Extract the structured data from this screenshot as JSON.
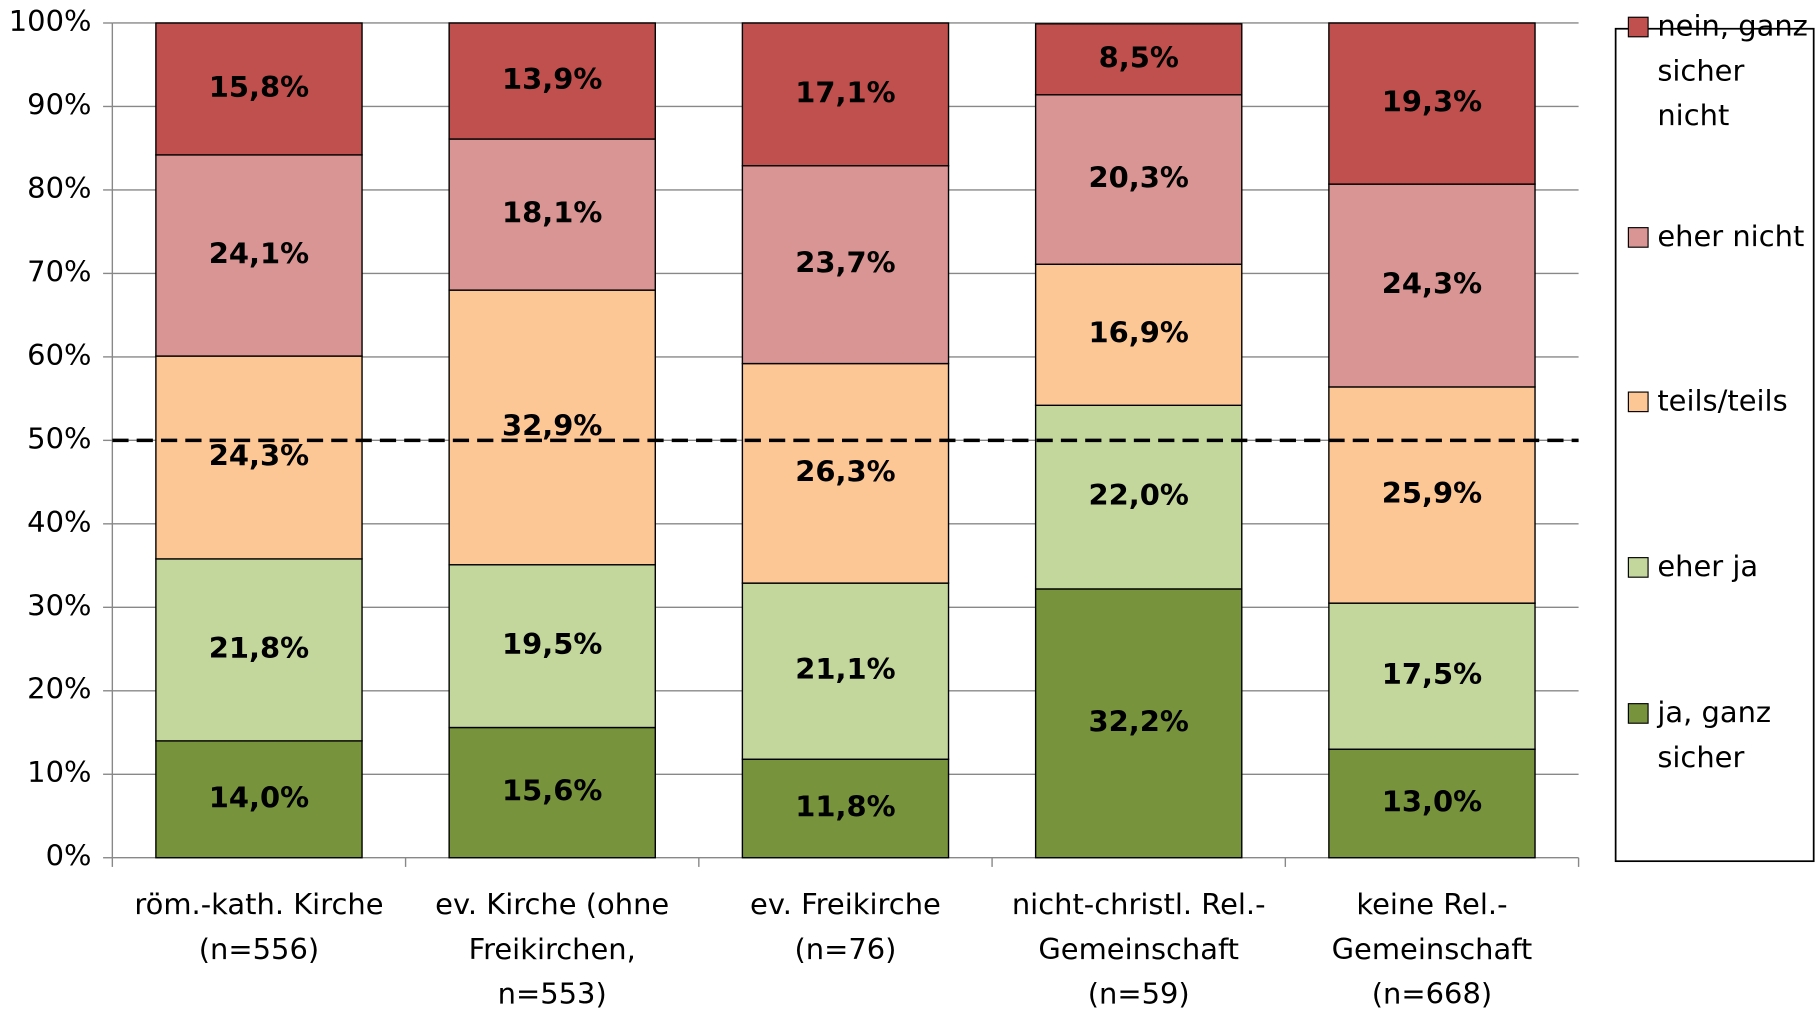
{
  "chart_data": {
    "type": "stacked_bar",
    "categories": [
      "röm.-kath. Kirche\n(n=556)",
      "ev. Kirche (ohne\nFreikirchen,\nn=553)",
      "ev. Freikirche\n(n=76)",
      "nicht-christl. Rel.-\nGemeinschaft\n(n=59)",
      "keine Rel.-\nGemeinschaft\n(n=668)"
    ],
    "series": [
      {
        "name": "ja, ganz\nsicher",
        "color": "#77933c",
        "values": [
          14.0,
          15.6,
          11.8,
          32.2,
          13.0
        ],
        "value_labels": [
          "14,0%",
          "15,6%",
          "11,8%",
          "32,2%",
          "13,0%"
        ]
      },
      {
        "name": "eher ja",
        "color": "#c3d69b",
        "values": [
          21.8,
          19.5,
          21.1,
          22.0,
          17.5
        ],
        "value_labels": [
          "21,8%",
          "19,5%",
          "21,1%",
          "22,0%",
          "17,5%"
        ]
      },
      {
        "name": "teils/teils",
        "color": "#fdc795",
        "values": [
          24.3,
          32.9,
          26.3,
          16.9,
          25.9
        ],
        "value_labels": [
          "24,3%",
          "32,9%",
          "26,3%",
          "16,9%",
          "25,9%"
        ]
      },
      {
        "name": "eher nicht",
        "color": "#d99594",
        "values": [
          24.1,
          18.1,
          23.7,
          20.3,
          24.3
        ],
        "value_labels": [
          "24,1%",
          "18,1%",
          "23,7%",
          "20,3%",
          "24,3%"
        ]
      },
      {
        "name": "nein, ganz\nsicher\nnicht",
        "color": "#c0504d",
        "values": [
          15.8,
          13.9,
          17.1,
          8.5,
          19.3
        ],
        "value_labels": [
          "15,8%",
          "13,9%",
          "17,1%",
          "8,5%",
          "19,3%"
        ]
      }
    ],
    "ylim": [
      0,
      100
    ],
    "yticks": [
      {
        "value": 0,
        "label": "0%"
      },
      {
        "value": 10,
        "label": "10%"
      },
      {
        "value": 20,
        "label": "20%"
      },
      {
        "value": 30,
        "label": "30%"
      },
      {
        "value": 40,
        "label": "40%"
      },
      {
        "value": 50,
        "label": "50%"
      },
      {
        "value": 60,
        "label": "60%"
      },
      {
        "value": 70,
        "label": "70%"
      },
      {
        "value": 80,
        "label": "80%"
      },
      {
        "value": 90,
        "label": "90%"
      },
      {
        "value": 100,
        "label": "100%"
      }
    ],
    "reference_line": 50,
    "grid": true,
    "legend": "right"
  }
}
